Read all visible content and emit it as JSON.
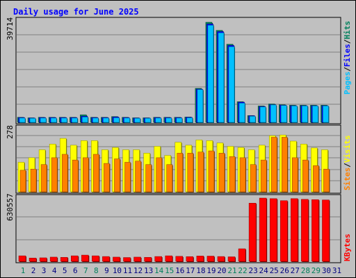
{
  "title": "Daily usage for June 2025",
  "panels": {
    "hits": {
      "ymax_label": "39714",
      "label_parts": [
        "Pages",
        "/",
        "Files",
        "/",
        "Hits"
      ]
    },
    "visits": {
      "ymax_label": "278",
      "label_parts": [
        "Sites",
        "/",
        "Visits"
      ]
    },
    "kbytes": {
      "ymax_label": "630557",
      "label_parts": [
        "KBytes"
      ]
    }
  },
  "colors": {
    "hits": "#00805c",
    "files": "#0000ff",
    "pages": "#00c0ff",
    "visits": "#ffff00",
    "sites": "#ff8000",
    "kbytes": "#ff0000",
    "weekend_day": "#00805c",
    "weekday": "#000080"
  },
  "chart_data": [
    {
      "type": "bar",
      "title": "Daily usage for June 2025",
      "categories": [
        "1",
        "2",
        "3",
        "4",
        "5",
        "6",
        "7",
        "8",
        "9",
        "10",
        "11",
        "12",
        "13",
        "14",
        "15",
        "16",
        "17",
        "18",
        "19",
        "20",
        "21",
        "22",
        "23",
        "24",
        "25",
        "26",
        "27",
        "28",
        "29",
        "30",
        "31"
      ],
      "ylim": [
        0,
        39714
      ],
      "series": [
        {
          "name": "Hits",
          "values": [
            2000,
            1800,
            2000,
            2000,
            2000,
            2000,
            3000,
            2000,
            2000,
            2300,
            2000,
            1800,
            1800,
            2000,
            2000,
            2000,
            2100,
            13500,
            39714,
            36500,
            31000,
            8200,
            2700,
            6500,
            7300,
            7000,
            6800,
            6800,
            6800,
            6800,
            0
          ]
        },
        {
          "name": "Files",
          "values": [
            1900,
            1700,
            1900,
            1900,
            1900,
            1900,
            2400,
            1900,
            1900,
            2100,
            1900,
            1700,
            1700,
            1900,
            1900,
            1900,
            2000,
            13200,
            39000,
            36000,
            30500,
            8000,
            2600,
            6300,
            7000,
            6800,
            6600,
            6600,
            6600,
            6600,
            0
          ]
        },
        {
          "name": "Pages",
          "values": [
            1700,
            1600,
            1700,
            1700,
            1700,
            1700,
            2100,
            1700,
            1700,
            1800,
            1700,
            1600,
            1600,
            1700,
            1700,
            1700,
            1800,
            13000,
            38500,
            35500,
            30000,
            7600,
            2400,
            6100,
            6900,
            6700,
            6500,
            6500,
            6500,
            6500,
            0
          ]
        }
      ]
    },
    {
      "type": "bar",
      "categories": [
        "1",
        "2",
        "3",
        "4",
        "5",
        "6",
        "7",
        "8",
        "9",
        "10",
        "11",
        "12",
        "13",
        "14",
        "15",
        "16",
        "17",
        "18",
        "19",
        "20",
        "21",
        "22",
        "23",
        "24",
        "25",
        "26",
        "27",
        "28",
        "29",
        "30",
        "31"
      ],
      "ylim": [
        0,
        278
      ],
      "series": [
        {
          "name": "Visits",
          "values": [
            130,
            150,
            185,
            210,
            235,
            205,
            225,
            225,
            185,
            195,
            185,
            185,
            170,
            200,
            160,
            218,
            205,
            228,
            225,
            215,
            200,
            195,
            185,
            205,
            247,
            250,
            223,
            210,
            193,
            185,
            0
          ]
        },
        {
          "name": "Sites",
          "values": [
            95,
            100,
            120,
            150,
            165,
            140,
            150,
            165,
            125,
            145,
            130,
            135,
            120,
            150,
            120,
            170,
            170,
            175,
            180,
            170,
            155,
            150,
            120,
            140,
            240,
            240,
            150,
            140,
            115,
            100,
            0
          ]
        }
      ]
    },
    {
      "type": "bar",
      "categories": [
        "1",
        "2",
        "3",
        "4",
        "5",
        "6",
        "7",
        "8",
        "9",
        "10",
        "11",
        "12",
        "13",
        "14",
        "15",
        "16",
        "17",
        "18",
        "19",
        "20",
        "21",
        "22",
        "23",
        "24",
        "25",
        "26",
        "27",
        "28",
        "29",
        "30",
        "31"
      ],
      "ylim": [
        0,
        630557
      ],
      "series": [
        {
          "name": "KBytes",
          "values": [
            55000,
            33000,
            35000,
            42000,
            40000,
            55000,
            62000,
            55000,
            48000,
            42000,
            38000,
            42000,
            40000,
            48000,
            55000,
            50000,
            47000,
            53000,
            52000,
            48000,
            45000,
            125000,
            580000,
            630557,
            625000,
            605000,
            625000,
            618000,
            615000,
            612000,
            0
          ]
        }
      ]
    }
  ]
}
